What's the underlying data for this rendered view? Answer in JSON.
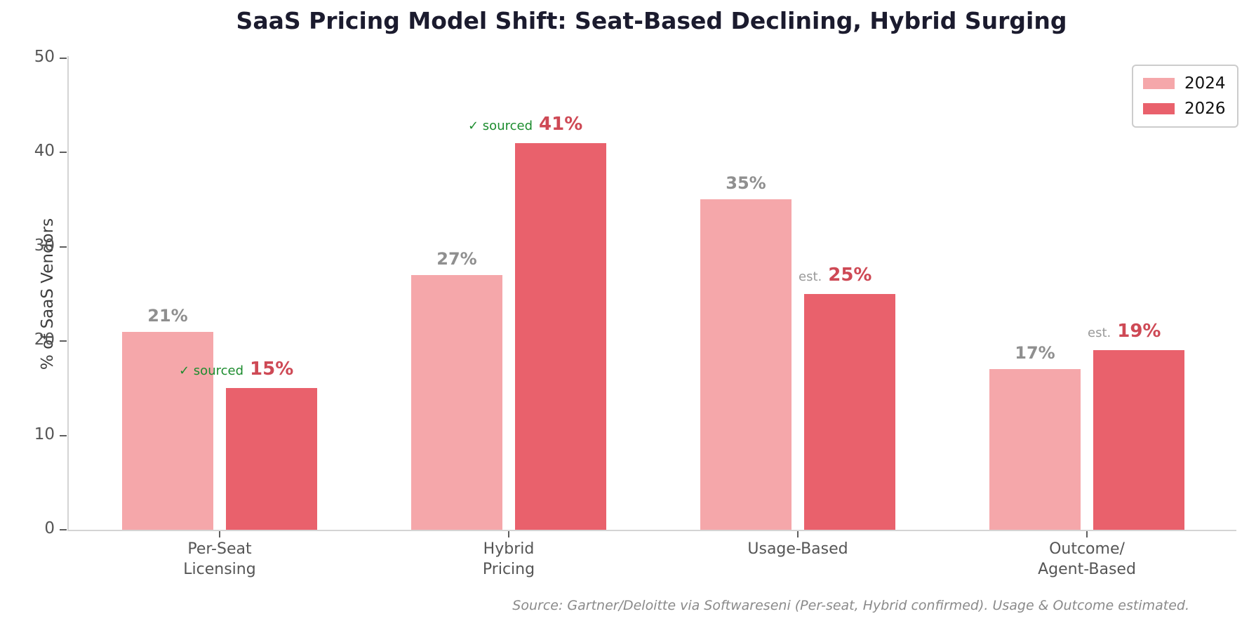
{
  "title": "SaaS Pricing Model Shift: Seat-Based Declining, Hybrid Surging",
  "source_note": "Source: Gartner/Deloitte via Softwareseni (Per-seat, Hybrid confirmed). Usage & Outcome estimated.",
  "colors": {
    "series_2024": "#F5A7AA",
    "series_2026": "#E9616C",
    "value_label_2024": "#8F8F8F",
    "value_label_2026": "#CE4955",
    "annotation_sourced": "#1C8C2E",
    "annotation_estimated": "#999999",
    "title": "#1B1B2E",
    "axis": "#D4D4D4"
  },
  "chart_data": {
    "type": "bar",
    "title": "SaaS Pricing Model Shift: Seat-Based Declining, Hybrid Surging",
    "xlabel": "",
    "ylabel": "% of SaaS Vendors",
    "ylim": [
      0,
      50
    ],
    "yticks": [
      0,
      10,
      20,
      30,
      40,
      50
    ],
    "grid": false,
    "legend_position": "upper right",
    "categories": [
      "Per-Seat Licensing",
      "Hybrid Pricing",
      "Usage-Based",
      "Outcome/Agent-Based"
    ],
    "series": [
      {
        "name": "2024",
        "color": "#F5A7AA",
        "values": [
          21,
          27,
          35,
          17
        ]
      },
      {
        "name": "2026",
        "color": "#E9616C",
        "values": [
          15,
          41,
          25,
          19
        ]
      }
    ],
    "groups": [
      {
        "slug": "per-seat-licensing",
        "label_lines": [
          "Per-Seat",
          "Licensing"
        ],
        "v2024": 21,
        "v2026": 15,
        "annotation_type": "sourced",
        "annotation_prefix": "✓ sourced",
        "label_2024": "21%",
        "label_2026": "15%"
      },
      {
        "slug": "hybrid-pricing",
        "label_lines": [
          "Hybrid",
          "Pricing"
        ],
        "v2024": 27,
        "v2026": 41,
        "annotation_type": "sourced",
        "annotation_prefix": "✓ sourced",
        "label_2024": "27%",
        "label_2026": "41%"
      },
      {
        "slug": "usage-based",
        "label_lines": [
          "Usage-Based"
        ],
        "v2024": 35,
        "v2026": 25,
        "annotation_type": "estimated",
        "annotation_prefix": "est.",
        "label_2024": "35%",
        "label_2026": "25%"
      },
      {
        "slug": "outcome-agent-based",
        "label_lines": [
          "Outcome/",
          "Agent-Based"
        ],
        "v2024": 17,
        "v2026": 19,
        "annotation_type": "estimated",
        "annotation_prefix": "est.",
        "label_2024": "17%",
        "label_2026": "19%"
      }
    ]
  }
}
